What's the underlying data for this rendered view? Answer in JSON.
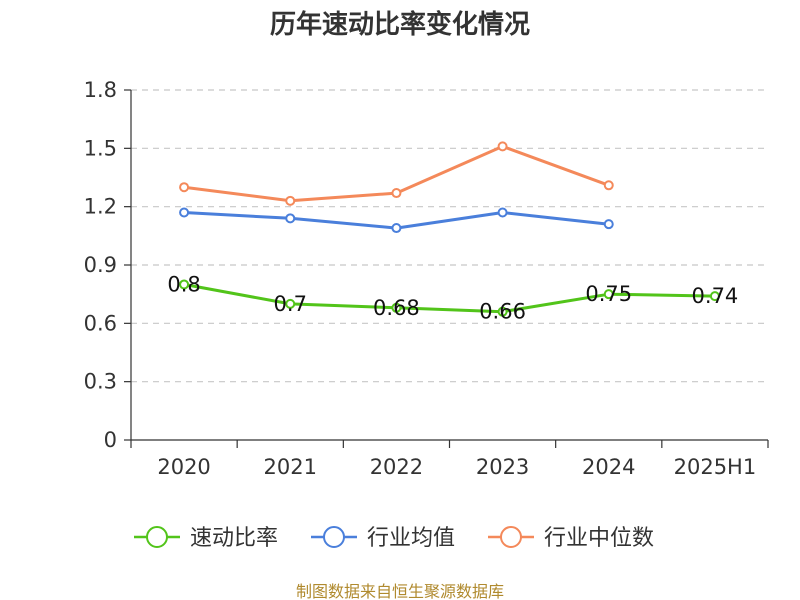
{
  "chart_data": {
    "type": "line",
    "title": "历年速动比率变化情况",
    "categories": [
      "2020",
      "2021",
      "2022",
      "2023",
      "2024",
      "2025H1"
    ],
    "ylim": [
      0,
      1.8
    ],
    "yticks": [
      "0",
      "0.3",
      "0.6",
      "0.9",
      "1.2",
      "1.5",
      "1.8"
    ],
    "grid": true,
    "legend_position": "bottom",
    "series": [
      {
        "name": "速动比率",
        "color": "#52c41a",
        "values": [
          0.8,
          0.7,
          0.68,
          0.66,
          0.75,
          0.74
        ],
        "labels": [
          "0.8",
          "0.7",
          "0.68",
          "0.66",
          "0.75",
          "0.74"
        ]
      },
      {
        "name": "行业均值",
        "color": "#4a7fdb",
        "values": [
          1.17,
          1.14,
          1.09,
          1.17,
          1.11,
          null
        ]
      },
      {
        "name": "行业中位数",
        "color": "#f4895a",
        "values": [
          1.3,
          1.23,
          1.27,
          1.51,
          1.31,
          null
        ]
      }
    ],
    "source": "制图数据来自恒生聚源数据库"
  }
}
